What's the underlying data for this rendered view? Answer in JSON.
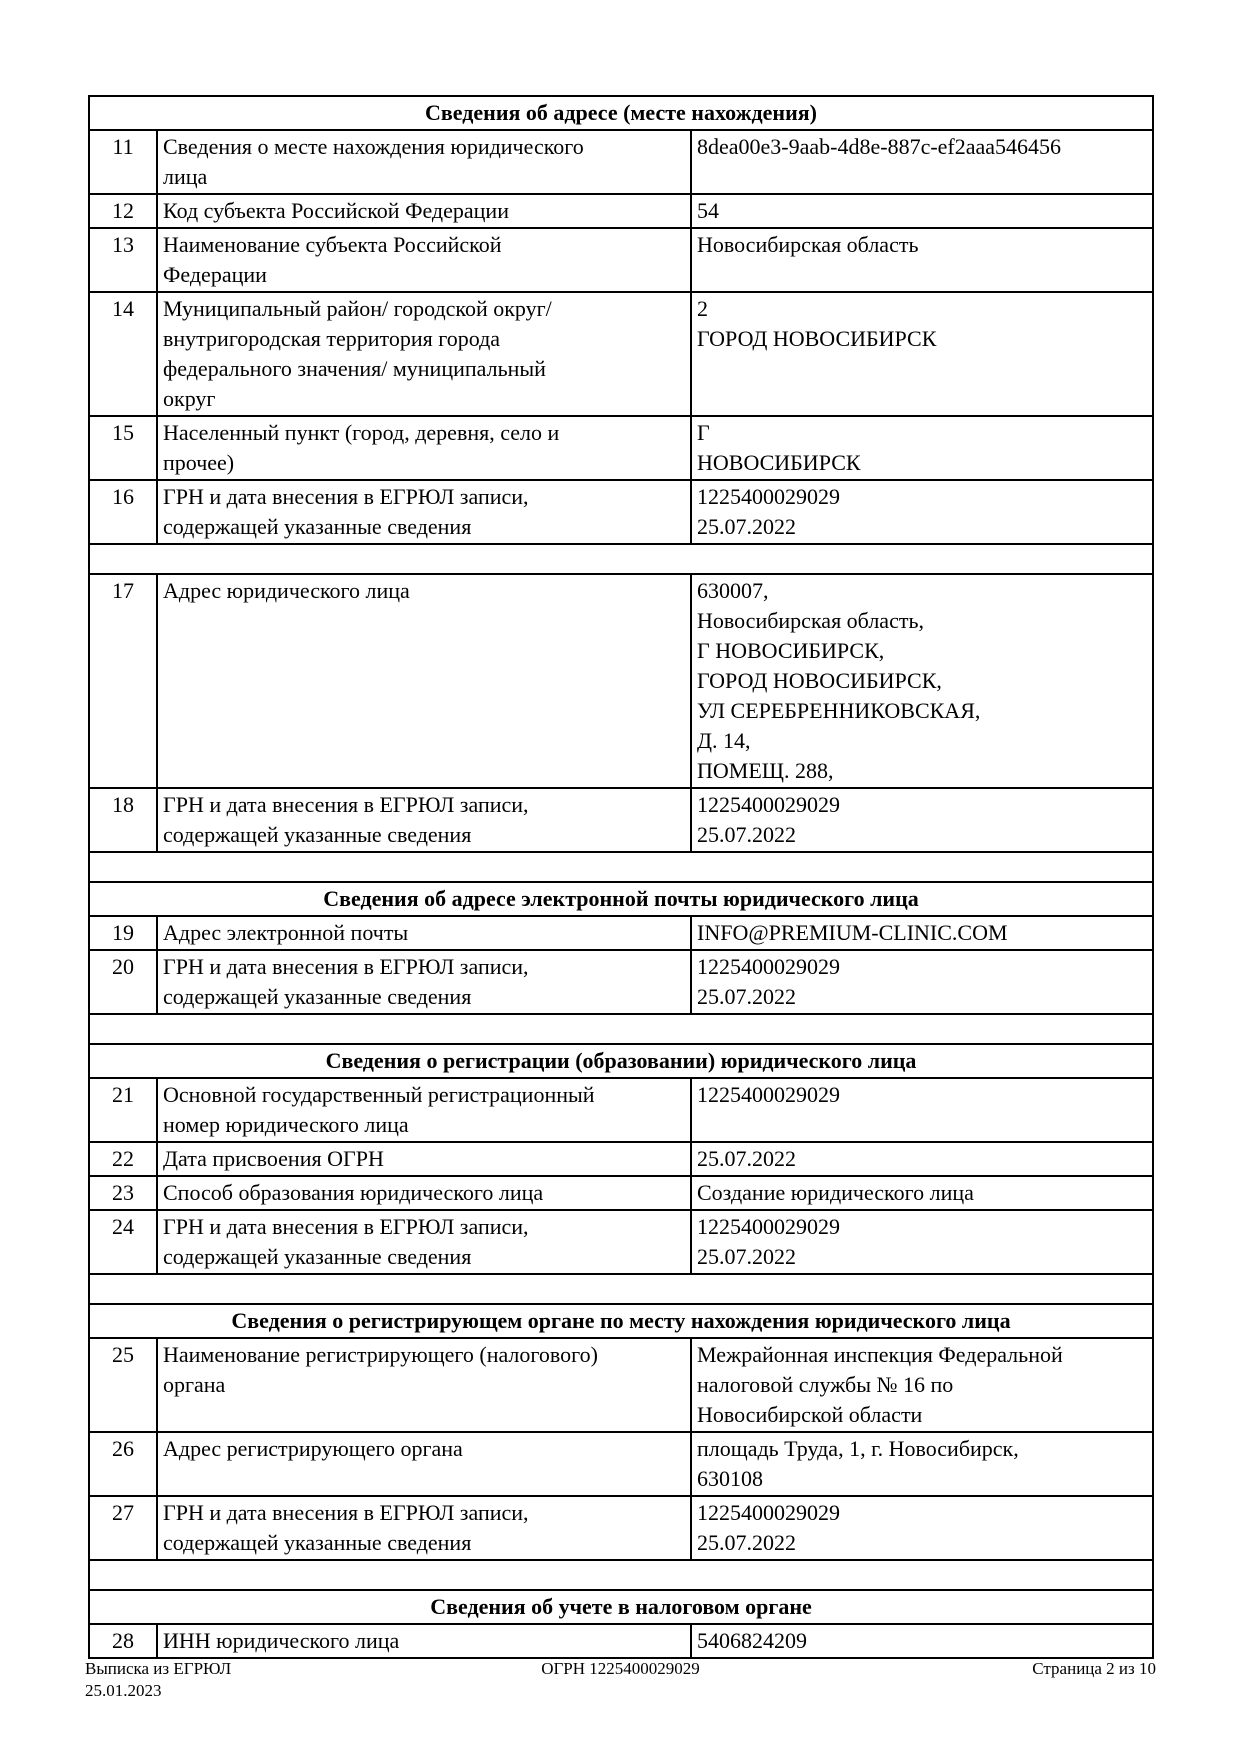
{
  "groups": [
    {
      "title": "Сведения об адресе (месте нахождения)",
      "rows": [
        {
          "num": "11",
          "label": "Сведения о месте нахождения юридического\nлица",
          "value": "8dea00e3-9aab-4d8e-887c-ef2aaa546456"
        },
        {
          "num": "12",
          "label": "Код субъекта Российской Федерации",
          "value": "54"
        },
        {
          "num": "13",
          "label": "Наименование субъекта Российской\nФедерации",
          "value": "Новосибирская область"
        },
        {
          "num": "14",
          "label": "Муниципальный район/ городской округ/\nвнутригородская территория города\nфедерального значения/ муниципальный\nокруг",
          "value": "2\nГОРОД НОВОСИБИРСК"
        },
        {
          "num": "15",
          "label": "Населенный пункт (город, деревня, село и\nпрочее)",
          "value": "Г\nНОВОСИБИРСК"
        },
        {
          "num": "16",
          "label": "ГРН и дата внесения в ЕГРЮЛ записи,\nсодержащей указанные сведения",
          "value": "1225400029029\n25.07.2022"
        }
      ]
    },
    {
      "rows": [
        {
          "num": "17",
          "label": "Адрес юридического лица",
          "value": "630007,\nНовосибирская область,\nГ НОВОСИБИРСК,\nГОРОД НОВОСИБИРСК,\nУЛ СЕРЕБРЕННИКОВСКАЯ,\nД. 14,\nПОМЕЩ. 288,"
        },
        {
          "num": "18",
          "label": "ГРН и дата внесения в ЕГРЮЛ записи,\nсодержащей указанные сведения",
          "value": "1225400029029\n25.07.2022"
        }
      ]
    },
    {
      "title": "Сведения об адресе электронной почты юридического лица",
      "rows": [
        {
          "num": "19",
          "label": "Адрес электронной почты",
          "value": "INFO@PREMIUM-CLINIC.COM"
        },
        {
          "num": "20",
          "label": "ГРН и дата внесения в ЕГРЮЛ записи,\nсодержащей указанные сведения",
          "value": "1225400029029\n25.07.2022"
        }
      ]
    },
    {
      "title": "Сведения о регистрации (образовании) юридического лица",
      "rows": [
        {
          "num": "21",
          "label": "Основной государственный регистрационный\nномер юридического лица",
          "value": "1225400029029"
        },
        {
          "num": "22",
          "label": "Дата присвоения ОГРН",
          "value": "25.07.2022"
        },
        {
          "num": "23",
          "label": "Способ образования юридического лица",
          "value": "Создание юридического лица"
        },
        {
          "num": "24",
          "label": "ГРН и дата внесения в ЕГРЮЛ записи,\nсодержащей указанные сведения",
          "value": "1225400029029\n25.07.2022"
        }
      ]
    },
    {
      "title": "Сведения о регистрирующем органе по месту нахождения юридического лица",
      "rows": [
        {
          "num": "25",
          "label": "Наименование регистрирующего (налогового)\nоргана",
          "value": "Межрайонная инспекция Федеральной\nналоговой службы № 16 по\nНовосибирской области"
        },
        {
          "num": "26",
          "label": "Адрес регистрирующего органа",
          "value": "площадь Труда, 1, г. Новосибирск,\n630108"
        },
        {
          "num": "27",
          "label": "ГРН и дата внесения в ЕГРЮЛ записи,\nсодержащей указанные сведения",
          "value": "1225400029029\n25.07.2022"
        }
      ]
    },
    {
      "title": "Сведения об учете в налоговом органе",
      "rows": [
        {
          "num": "28",
          "label": "ИНН юридического лица",
          "value": "5406824209"
        }
      ]
    }
  ],
  "footer": {
    "doc_type": "Выписка из ЕГРЮЛ",
    "date": "25.01.2023",
    "ogrn": "ОГРН 1225400029029",
    "page": "Страница 2 из 10"
  }
}
